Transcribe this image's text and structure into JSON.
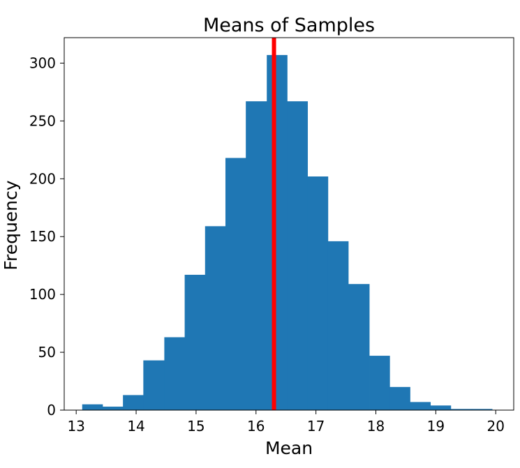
{
  "chart_data": {
    "type": "bar",
    "title": "Means of Samples",
    "xlabel": "Mean",
    "ylabel": "Frequency",
    "xlim": [
      12.8,
      20.3
    ],
    "ylim": [
      0,
      322
    ],
    "x_ticks": [
      13,
      14,
      15,
      16,
      17,
      18,
      19,
      20
    ],
    "y_ticks": [
      0,
      50,
      100,
      150,
      200,
      250,
      300
    ],
    "bins": [
      {
        "x0": 13.1,
        "x1": 13.44,
        "value": 5
      },
      {
        "x0": 13.44,
        "x1": 13.78,
        "value": 3
      },
      {
        "x0": 13.78,
        "x1": 14.12,
        "value": 13
      },
      {
        "x0": 14.12,
        "x1": 14.47,
        "value": 43
      },
      {
        "x0": 14.47,
        "x1": 14.81,
        "value": 63
      },
      {
        "x0": 14.81,
        "x1": 15.15,
        "value": 117
      },
      {
        "x0": 15.15,
        "x1": 15.49,
        "value": 159
      },
      {
        "x0": 15.49,
        "x1": 15.83,
        "value": 218
      },
      {
        "x0": 15.83,
        "x1": 16.18,
        "value": 267
      },
      {
        "x0": 16.18,
        "x1": 16.52,
        "value": 307
      },
      {
        "x0": 16.52,
        "x1": 16.86,
        "value": 267
      },
      {
        "x0": 16.86,
        "x1": 17.2,
        "value": 202
      },
      {
        "x0": 17.2,
        "x1": 17.54,
        "value": 146
      },
      {
        "x0": 17.54,
        "x1": 17.89,
        "value": 109
      },
      {
        "x0": 17.89,
        "x1": 18.23,
        "value": 47
      },
      {
        "x0": 18.23,
        "x1": 18.57,
        "value": 20
      },
      {
        "x0": 18.57,
        "x1": 18.91,
        "value": 7
      },
      {
        "x0": 18.91,
        "x1": 19.25,
        "value": 4
      },
      {
        "x0": 19.25,
        "x1": 19.6,
        "value": 1
      },
      {
        "x0": 19.6,
        "x1": 19.94,
        "value": 1
      }
    ],
    "mean_line": {
      "x": 16.3,
      "color": "#ff0000"
    },
    "bar_color": "#1f77b4",
    "grid": false,
    "legend": "none"
  }
}
